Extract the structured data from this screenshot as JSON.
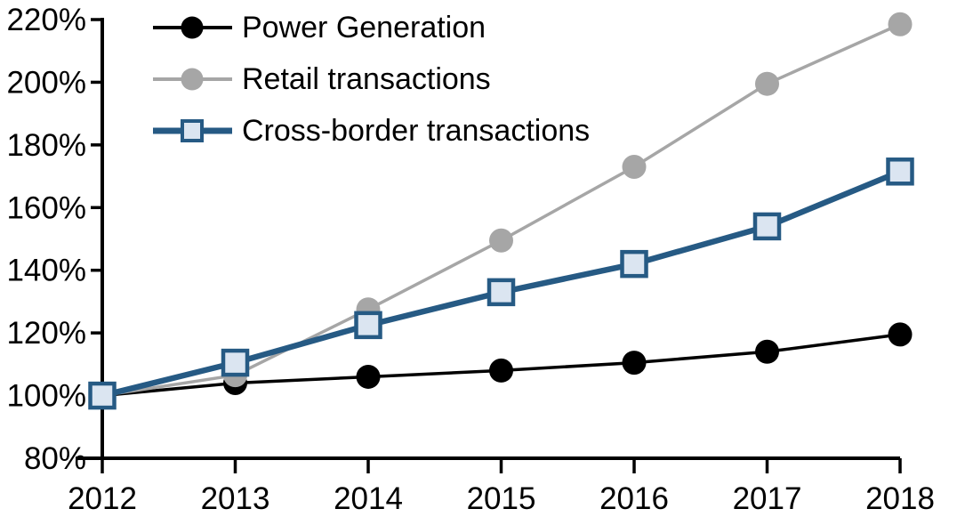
{
  "chart_data": {
    "type": "line",
    "title": "",
    "xlabel": "",
    "ylabel": "",
    "categories": [
      "2012",
      "2013",
      "2014",
      "2015",
      "2016",
      "2017",
      "2018"
    ],
    "y_axis": {
      "min": 80,
      "max": 220,
      "step": 20,
      "unit": "%",
      "tick_labels": [
        "220%",
        "200%",
        "180%",
        "160%",
        "140%",
        "120%",
        "100%",
        "80%"
      ]
    },
    "grid": false,
    "legend_position": "top-left-inside",
    "axis_color": "#000000",
    "background_color": "#ffffff",
    "series": [
      {
        "id": "power-generation",
        "name": "Power Generation",
        "line_color": "#000000",
        "line_width": 3.5,
        "marker": "circle",
        "marker_fill": "#000000",
        "values": [
          100,
          104,
          106,
          108,
          110.5,
          114,
          119.5
        ]
      },
      {
        "id": "retail-transactions",
        "name": "Retail transactions",
        "line_color": "#a6a6a6",
        "line_width": 3.5,
        "marker": "circle",
        "marker_fill": "#a6a6a6",
        "values": [
          100,
          106.5,
          127.5,
          149.5,
          173,
          199.5,
          218.5
        ]
      },
      {
        "id": "cross-border-transactions",
        "name": "Cross-border transactions",
        "line_color": "#265a84",
        "line_width": 6.5,
        "marker": "square",
        "marker_fill": "#dbe5f1",
        "marker_stroke": "#265a84",
        "values": [
          100,
          110.5,
          122.5,
          133,
          142,
          154,
          171.5
        ]
      }
    ]
  }
}
